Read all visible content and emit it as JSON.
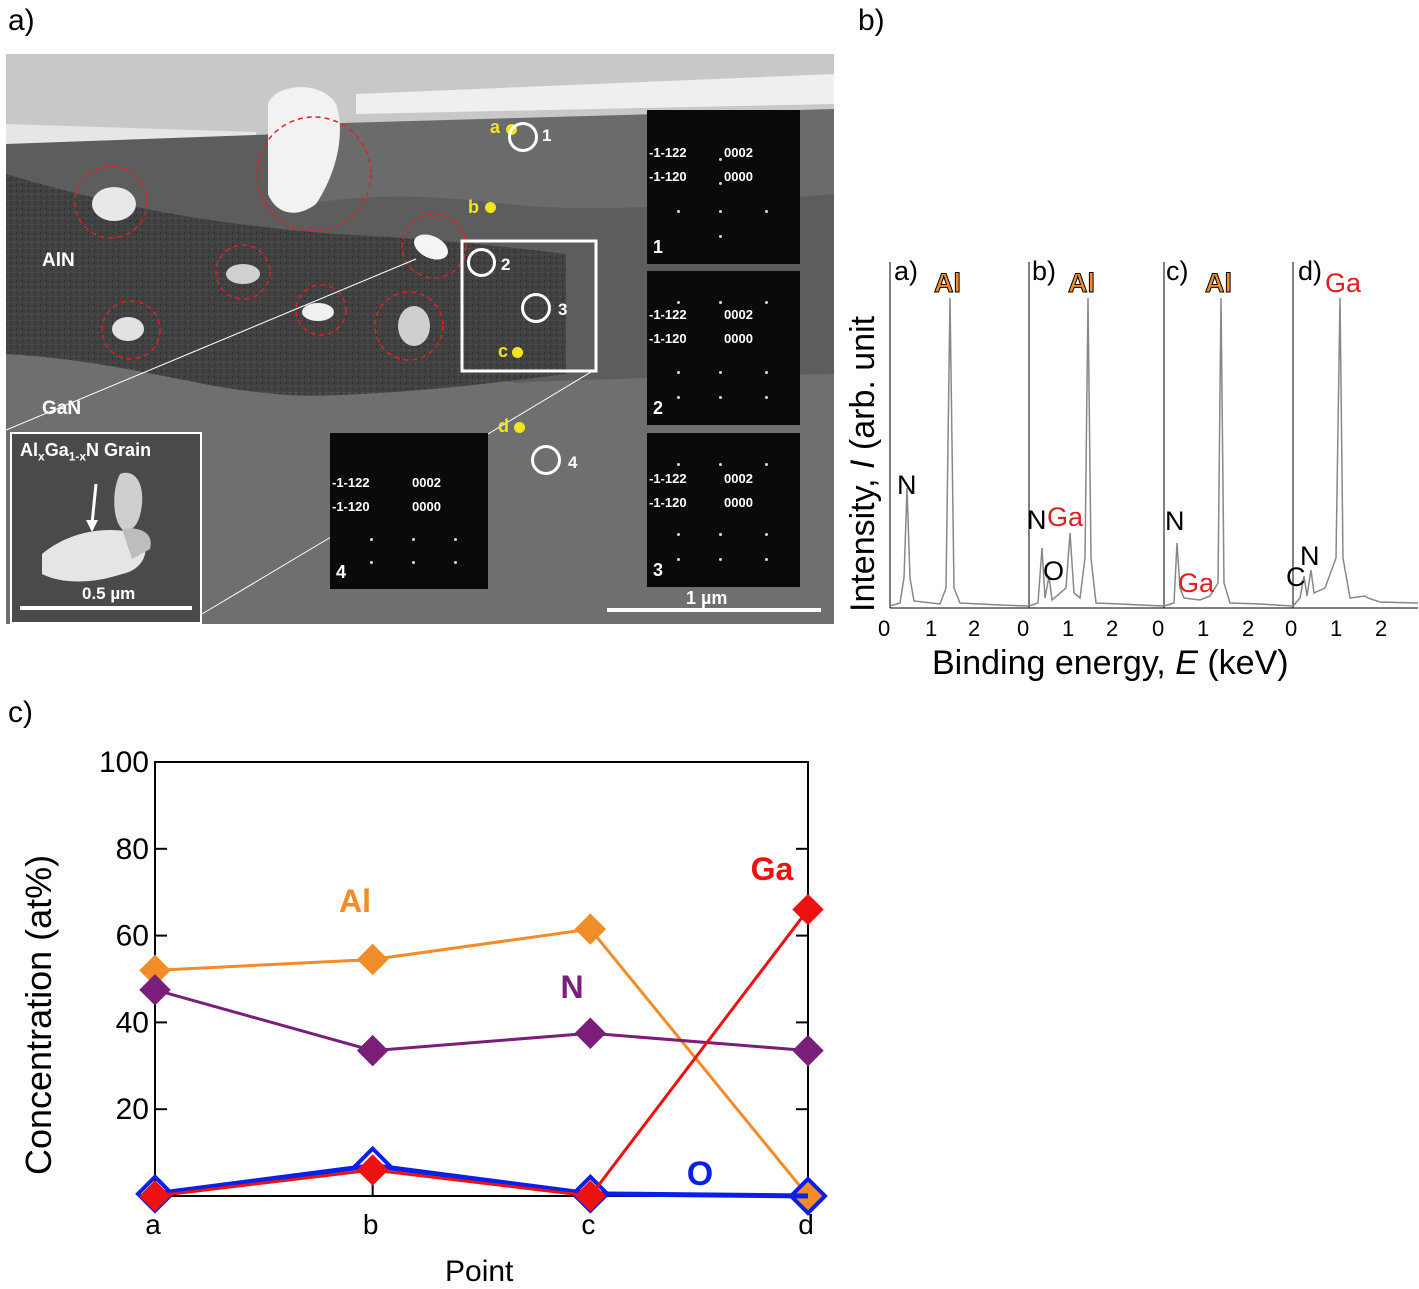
{
  "panel_a": {
    "label": "a)",
    "layers": {
      "aln": "AlN",
      "gan": "GaN"
    },
    "points": [
      "a",
      "b",
      "c",
      "d"
    ],
    "circles": [
      "1",
      "2",
      "3",
      "4"
    ],
    "saed": {
      "hkl_1": "-1-122",
      "hkl_2": "-1-120",
      "hkl_3": "0002",
      "hkl_4": "0000",
      "patterns": [
        "1",
        "2",
        "3",
        "4"
      ]
    },
    "inset": {
      "grain_label": "Al",
      "sub_x": "x",
      "mid": "Ga",
      "sub_1x": "1-x",
      "tail": "N Grain",
      "scale": "0.5 µm"
    },
    "scale": "1 µm"
  },
  "panel_b": {
    "label": "b)",
    "ylabel_pre": "Intensity, ",
    "ylabel_var": "I",
    "ylabel_post": " (arb. unit",
    "xlabel_pre": "Binding energy, ",
    "xlabel_var": "E",
    "xlabel_post": " (keV)",
    "spectra": [
      {
        "id": "a)",
        "peaks": [
          "N",
          "Al"
        ]
      },
      {
        "id": "b)",
        "peaks": [
          "N",
          "Ga",
          "O",
          "Al"
        ]
      },
      {
        "id": "c)",
        "peaks": [
          "N",
          "Ga",
          "Al"
        ]
      },
      {
        "id": "d)",
        "peaks": [
          "C",
          "N",
          "Ga"
        ]
      }
    ],
    "xticks": [
      "0",
      "1",
      "2"
    ]
  },
  "panel_c": {
    "label": "c)"
  },
  "chart_data": {
    "type": "line",
    "xlabel": "Point",
    "ylabel": "Concentration (at%)",
    "categories": [
      "a",
      "b",
      "c",
      "d"
    ],
    "ylim": [
      0,
      100
    ],
    "yticks": [
      "20",
      "40",
      "60",
      "80",
      "100"
    ],
    "series": [
      {
        "name": "Al",
        "color": "#f28c28",
        "values": [
          52,
          54.5,
          61.5,
          0
        ]
      },
      {
        "name": "N",
        "color": "#7b1e7a",
        "values": [
          47.5,
          33.5,
          37.5,
          33.5
        ]
      },
      {
        "name": "O",
        "color": "#0a1fe8",
        "values": [
          0.5,
          7,
          0.5,
          0
        ]
      },
      {
        "name": "Ga",
        "color": "#ee1111",
        "values": [
          0,
          6,
          0,
          66
        ]
      }
    ]
  }
}
